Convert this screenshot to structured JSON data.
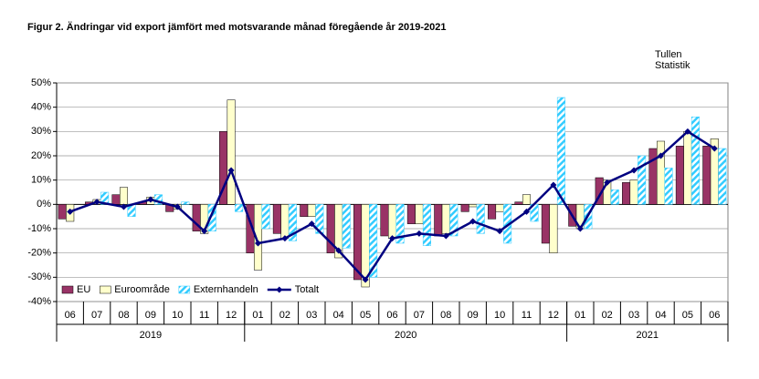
{
  "chart_data": {
    "type": "bar-line",
    "title": "Figur  2. Ändringar vid  export jämfört med motsvarande månad föregående år 2019-2021",
    "source": [
      "Tullen",
      "Statistik"
    ],
    "groups": [
      {
        "name": "2019",
        "categories": [
          "06",
          "07",
          "08",
          "09",
          "10",
          "11",
          "12"
        ]
      },
      {
        "name": "2020",
        "categories": [
          "01",
          "02",
          "03",
          "04",
          "05",
          "06",
          "07",
          "08",
          "09",
          "10",
          "11",
          "12"
        ]
      },
      {
        "name": "2021",
        "categories": [
          "01",
          "02",
          "03",
          "04",
          "05",
          "06"
        ]
      }
    ],
    "series": [
      {
        "name": "EU",
        "type": "bar",
        "color": "#993366",
        "values": [
          -6,
          1,
          4,
          1,
          -3,
          -11,
          30,
          -20,
          -12,
          -5,
          -20,
          -31,
          -13,
          -8,
          -13,
          -3,
          -6,
          1,
          -16,
          -9,
          11,
          9,
          23,
          24,
          24
        ]
      },
      {
        "name": "Euroområde",
        "type": "bar",
        "color": "#ffffcc",
        "values": [
          -7,
          2,
          7,
          3,
          -2,
          -12,
          43,
          -27,
          -14,
          -5,
          -22,
          -34,
          -14,
          -8,
          -12,
          -1,
          -3,
          4,
          -20,
          -10,
          10,
          10,
          26,
          30,
          27
        ]
      },
      {
        "name": "Externhandeln",
        "type": "bar",
        "color": "#33ccff",
        "hatch": true,
        "values": [
          0,
          5,
          -5,
          4,
          1,
          -11,
          -3,
          -10,
          -15,
          -12,
          -18,
          -30,
          -16,
          -17,
          -13,
          -12,
          -16,
          -7,
          44,
          -10,
          6,
          20,
          15,
          36,
          23
        ]
      },
      {
        "name": "Totalt",
        "type": "line",
        "color": "#000080",
        "values": [
          -3,
          1,
          -1,
          2,
          -1,
          -11,
          14,
          -16,
          -14,
          -8,
          -19,
          -31,
          -14,
          -12,
          -13,
          -7,
          -11,
          -3,
          8,
          -10,
          9,
          14,
          20,
          30,
          23
        ]
      }
    ],
    "ylim": [
      -40,
      50
    ],
    "yticks": [
      {
        "value": -40,
        "label": "-40%"
      },
      {
        "value": -30,
        "label": "-30%"
      },
      {
        "value": -20,
        "label": "-20%"
      },
      {
        "value": -10,
        "label": "-10%"
      },
      {
        "value": 0,
        "label": "0%"
      },
      {
        "value": 10,
        "label": "10%"
      },
      {
        "value": 20,
        "label": "20%"
      },
      {
        "value": 30,
        "label": "30%"
      },
      {
        "value": 40,
        "label": "40%"
      },
      {
        "value": 50,
        "label": "50%"
      }
    ],
    "grid": true,
    "legend": "bottom-left"
  }
}
